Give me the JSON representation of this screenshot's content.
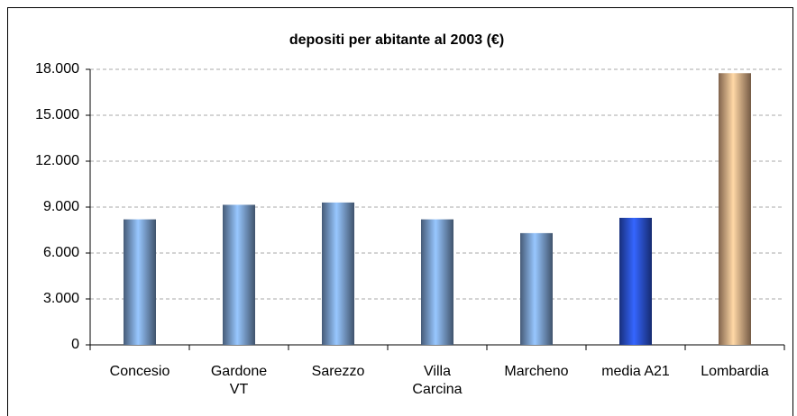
{
  "chart_data": {
    "type": "bar",
    "title": "depositi per abitante al 2003 (€)",
    "categories": [
      "Concesio",
      "Gardone VT",
      "Sarezzo",
      "Villa Carcina",
      "Marcheno",
      "media A21",
      "Lombardia"
    ],
    "values": [
      8200,
      9150,
      9300,
      8200,
      7300,
      8300,
      17750
    ],
    "colors": [
      "#7fa6d8",
      "#7fa6d8",
      "#7fa6d8",
      "#7fa6d8",
      "#7fa6d8",
      "#2c55e0",
      "#e8b48a"
    ],
    "ylim": [
      0,
      18000
    ],
    "yticks": [
      0,
      {
        "value": 3000,
        "label": "3.000"
      },
      {
        "value": 6000,
        "label": "6.000"
      },
      {
        "value": 9000,
        "label": "9.000"
      },
      {
        "value": 12000,
        "label": "12.000"
      },
      {
        "value": 15000,
        "label": "15.000"
      },
      {
        "value": 18000,
        "label": "18.000"
      }
    ],
    "grid": true
  }
}
